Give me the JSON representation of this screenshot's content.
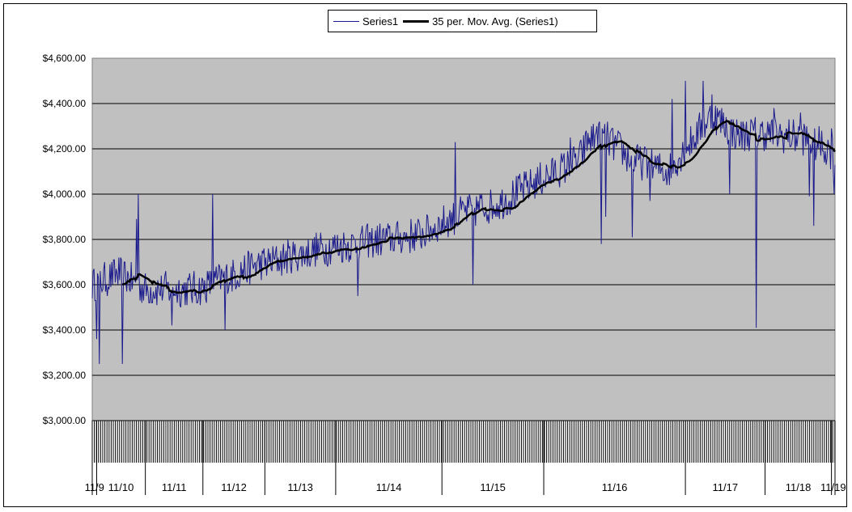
{
  "chart_data": {
    "type": "line",
    "title": "",
    "xlabel": "",
    "ylabel": "",
    "ylim": [
      3000,
      4600
    ],
    "yticks": [
      "$4,600.00",
      "$4,400.00",
      "$4,200.00",
      "$4,000.00",
      "$3,800.00",
      "$3,600.00",
      "$3,400.00",
      "$3,200.00",
      "$3,000.00"
    ],
    "ytick_values": [
      4600,
      4400,
      4200,
      4000,
      3800,
      3600,
      3400,
      3200,
      3000
    ],
    "grid": true,
    "legend_position": "top-center",
    "plot_background": "#c0c0c0",
    "x_groups": [
      {
        "label": "11/9",
        "start": 0,
        "end": 5
      },
      {
        "label": "11/10",
        "start": 5,
        "end": 60
      },
      {
        "label": "11/11",
        "start": 60,
        "end": 125
      },
      {
        "label": "11/12",
        "start": 125,
        "end": 195
      },
      {
        "label": "11/13",
        "start": 195,
        "end": 275
      },
      {
        "label": "11/14",
        "start": 275,
        "end": 395
      },
      {
        "label": "11/15",
        "start": 395,
        "end": 510
      },
      {
        "label": "11/16",
        "start": 510,
        "end": 670
      },
      {
        "label": "11/17",
        "start": 670,
        "end": 760
      },
      {
        "label": "11/18",
        "start": 760,
        "end": 835
      },
      {
        "label": "11/19",
        "start": 835,
        "end": 840
      }
    ],
    "n_points": 840,
    "series": [
      {
        "name": "Series1",
        "color": "#1a1a8c",
        "width": 1,
        "anchors": [
          [
            0,
            3600
          ],
          [
            30,
            3650
          ],
          [
            60,
            3580
          ],
          [
            120,
            3580
          ],
          [
            180,
            3680
          ],
          [
            260,
            3760
          ],
          [
            330,
            3800
          ],
          [
            370,
            3820
          ],
          [
            420,
            3920
          ],
          [
            460,
            3960
          ],
          [
            500,
            4050
          ],
          [
            550,
            4150
          ],
          [
            560,
            4240
          ],
          [
            580,
            4250
          ],
          [
            610,
            4150
          ],
          [
            650,
            4100
          ],
          [
            670,
            4200
          ],
          [
            700,
            4350
          ],
          [
            730,
            4260
          ],
          [
            760,
            4270
          ],
          [
            800,
            4250
          ],
          [
            820,
            4220
          ],
          [
            840,
            4180
          ]
        ],
        "noise": 80,
        "spikes": [
          [
            5,
            3360
          ],
          [
            8,
            3250
          ],
          [
            34,
            3250
          ],
          [
            50,
            3890
          ],
          [
            52,
            4000
          ],
          [
            55,
            3600
          ],
          [
            90,
            3420
          ],
          [
            136,
            4000
          ],
          [
            150,
            3400
          ],
          [
            300,
            3550
          ],
          [
            410,
            4230
          ],
          [
            415,
            3950
          ],
          [
            430,
            3600
          ],
          [
            540,
            4250
          ],
          [
            570,
            4300
          ],
          [
            575,
            3780
          ],
          [
            580,
            3900
          ],
          [
            610,
            3810
          ],
          [
            625,
            4200
          ],
          [
            630,
            3970
          ],
          [
            655,
            4420
          ],
          [
            670,
            4500
          ],
          [
            690,
            4500
          ],
          [
            700,
            4440
          ],
          [
            720,
            4000
          ],
          [
            745,
            4320
          ],
          [
            750,
            3410
          ],
          [
            770,
            4380
          ],
          [
            800,
            4360
          ],
          [
            810,
            3990
          ],
          [
            815,
            3860
          ],
          [
            835,
            4290
          ],
          [
            838,
            4000
          ]
        ]
      },
      {
        "name": "35 per. Mov. Avg. (Series1)",
        "color": "#000000",
        "width": 2.5,
        "window": 35
      }
    ]
  }
}
